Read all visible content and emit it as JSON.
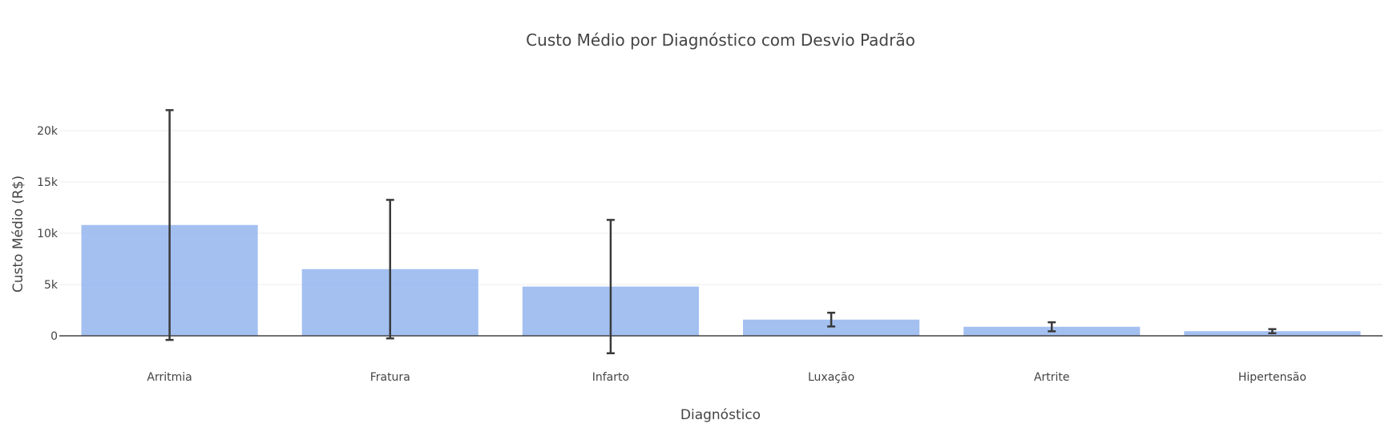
{
  "chart_data": {
    "type": "bar",
    "title": "Custo Médio por Diagnóstico com Desvio Padrão",
    "xlabel": "Diagnóstico",
    "ylabel": "Custo Médio (R$)",
    "categories": [
      "Arritmia",
      "Fratura",
      "Infarto",
      "Luxação",
      "Artrite",
      "Hipertensão"
    ],
    "values": [
      10800,
      6500,
      4800,
      1580,
      880,
      450
    ],
    "error": [
      11200,
      6750,
      6500,
      670,
      440,
      200
    ],
    "ylim": [
      -1800,
      22400
    ],
    "yticks": [
      0,
      5000,
      10000,
      15000,
      20000
    ],
    "ytick_labels": [
      "0",
      "5k",
      "10k",
      "15k",
      "20k"
    ],
    "grid": true,
    "legend": "none",
    "colors": {
      "bar": "#8cb0ee",
      "error_bar": "#3a3a3a",
      "grid": "#eeeeee",
      "zero_line": "#444444",
      "text": "#444444"
    }
  }
}
